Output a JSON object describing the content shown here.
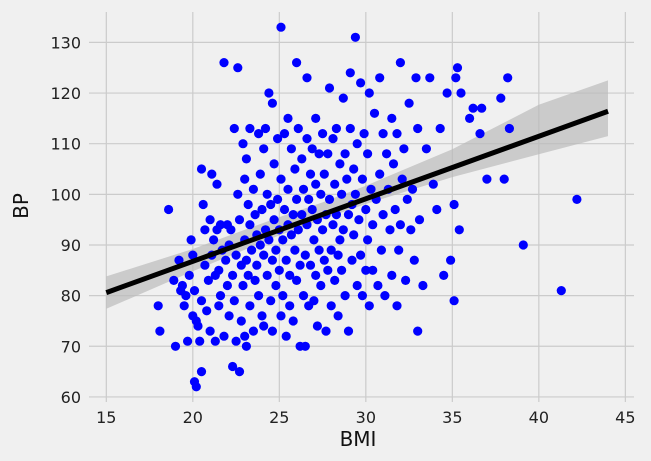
{
  "chart_data": {
    "type": "scatter",
    "title": "",
    "xlabel": "BMI",
    "ylabel": "BP",
    "xlim": [
      14,
      45.5
    ],
    "ylim": [
      59,
      136
    ],
    "xticks": [
      15,
      20,
      25,
      30,
      35,
      40,
      45
    ],
    "yticks": [
      60,
      70,
      80,
      90,
      100,
      110,
      120,
      130
    ],
    "grid": true,
    "point_color": "#0000ff",
    "regression_line": {
      "x": [
        15,
        44
      ],
      "y": [
        80.6,
        116.4
      ],
      "color": "#000000"
    },
    "confidence_band": {
      "x": [
        15,
        20,
        25,
        27.5,
        30,
        35,
        40,
        44
      ],
      "lower": [
        77.4,
        84.8,
        91.9,
        95.1,
        98.1,
        103.4,
        107.9,
        111.5
      ],
      "upper": [
        83.8,
        89.2,
        95.5,
        98.4,
        101.7,
        108.9,
        117.7,
        122.5
      ],
      "color": "#bbbbbb"
    },
    "points": [
      [
        18.0,
        78
      ],
      [
        18.1,
        73
      ],
      [
        18.6,
        97
      ],
      [
        18.9,
        83
      ],
      [
        19.0,
        70
      ],
      [
        19.2,
        87
      ],
      [
        19.3,
        81
      ],
      [
        19.4,
        82
      ],
      [
        19.5,
        78
      ],
      [
        19.6,
        80
      ],
      [
        19.7,
        71
      ],
      [
        19.8,
        84
      ],
      [
        19.9,
        91
      ],
      [
        20.0,
        88
      ],
      [
        20.0,
        76
      ],
      [
        20.1,
        81
      ],
      [
        20.1,
        63
      ],
      [
        20.2,
        62
      ],
      [
        20.2,
        75
      ],
      [
        20.3,
        74
      ],
      [
        20.4,
        71
      ],
      [
        20.5,
        105
      ],
      [
        20.5,
        79
      ],
      [
        20.5,
        65
      ],
      [
        20.6,
        98
      ],
      [
        20.7,
        93
      ],
      [
        20.7,
        86
      ],
      [
        20.8,
        77
      ],
      [
        20.9,
        83
      ],
      [
        21.0,
        95
      ],
      [
        21.0,
        73
      ],
      [
        21.1,
        104
      ],
      [
        21.1,
        88
      ],
      [
        21.2,
        91
      ],
      [
        21.3,
        84
      ],
      [
        21.3,
        71
      ],
      [
        21.4,
        102
      ],
      [
        21.4,
        93
      ],
      [
        21.5,
        85
      ],
      [
        21.5,
        78
      ],
      [
        21.6,
        94
      ],
      [
        21.6,
        80
      ],
      [
        21.7,
        89
      ],
      [
        21.8,
        126
      ],
      [
        21.8,
        72
      ],
      [
        21.9,
        87
      ],
      [
        22.0,
        94
      ],
      [
        22.0,
        82
      ],
      [
        22.1,
        90
      ],
      [
        22.1,
        76
      ],
      [
        22.2,
        93
      ],
      [
        22.3,
        84
      ],
      [
        22.3,
        66
      ],
      [
        22.4,
        113
      ],
      [
        22.4,
        79
      ],
      [
        22.5,
        88
      ],
      [
        22.5,
        71
      ],
      [
        22.6,
        125
      ],
      [
        22.6,
        100
      ],
      [
        22.7,
        95
      ],
      [
        22.7,
        65
      ],
      [
        22.8,
        86
      ],
      [
        22.8,
        75
      ],
      [
        22.9,
        110
      ],
      [
        22.9,
        82
      ],
      [
        23.0,
        103
      ],
      [
        23.0,
        91
      ],
      [
        23.0,
        72
      ],
      [
        23.1,
        107
      ],
      [
        23.1,
        87
      ],
      [
        23.1,
        70
      ],
      [
        23.2,
        98
      ],
      [
        23.2,
        84
      ],
      [
        23.3,
        113
      ],
      [
        23.3,
        94
      ],
      [
        23.3,
        78
      ],
      [
        23.4,
        89
      ],
      [
        23.5,
        101
      ],
      [
        23.5,
        73
      ],
      [
        23.6,
        96
      ],
      [
        23.6,
        83
      ],
      [
        23.7,
        92
      ],
      [
        23.7,
        86
      ],
      [
        23.8,
        112
      ],
      [
        23.8,
        80
      ],
      [
        23.9,
        104
      ],
      [
        23.9,
        90
      ],
      [
        24.0,
        97
      ],
      [
        24.0,
        76
      ],
      [
        24.1,
        109
      ],
      [
        24.1,
        88
      ],
      [
        24.1,
        74
      ],
      [
        24.2,
        113
      ],
      [
        24.2,
        93
      ],
      [
        24.3,
        100
      ],
      [
        24.3,
        84
      ],
      [
        24.4,
        120
      ],
      [
        24.4,
        91
      ],
      [
        24.5,
        98
      ],
      [
        24.5,
        79
      ],
      [
        24.6,
        118
      ],
      [
        24.6,
        87
      ],
      [
        24.6,
        73
      ],
      [
        24.7,
        106
      ],
      [
        24.7,
        95
      ],
      [
        24.8,
        82
      ],
      [
        24.8,
        89
      ],
      [
        24.9,
        111
      ],
      [
        24.9,
        99
      ],
      [
        25.0,
        93
      ],
      [
        25.0,
        85
      ],
      [
        25.1,
        133
      ],
      [
        25.1,
        103
      ],
      [
        25.1,
        76
      ],
      [
        25.2,
        91
      ],
      [
        25.2,
        80
      ],
      [
        25.3,
        112
      ],
      [
        25.3,
        97
      ],
      [
        25.4,
        87
      ],
      [
        25.4,
        72
      ],
      [
        25.5,
        115
      ],
      [
        25.5,
        101
      ],
      [
        25.5,
        94
      ],
      [
        25.6,
        84
      ],
      [
        25.6,
        78
      ],
      [
        25.7,
        109
      ],
      [
        25.7,
        92
      ],
      [
        25.8,
        96
      ],
      [
        25.8,
        75
      ],
      [
        25.9,
        105
      ],
      [
        25.9,
        89
      ],
      [
        26.0,
        126
      ],
      [
        26.0,
        99
      ],
      [
        26.0,
        83
      ],
      [
        26.1,
        113
      ],
      [
        26.1,
        93
      ],
      [
        26.2,
        86
      ],
      [
        26.2,
        70
      ],
      [
        26.3,
        107
      ],
      [
        26.3,
        96
      ],
      [
        26.4,
        101
      ],
      [
        26.4,
        80
      ],
      [
        26.5,
        70
      ],
      [
        26.5,
        88
      ],
      [
        26.6,
        123
      ],
      [
        26.6,
        111
      ],
      [
        26.6,
        94
      ],
      [
        26.7,
        99
      ],
      [
        26.7,
        78
      ],
      [
        26.8,
        104
      ],
      [
        26.8,
        86
      ],
      [
        26.9,
        109
      ],
      [
        26.9,
        97
      ],
      [
        27.0,
        91
      ],
      [
        27.0,
        79
      ],
      [
        27.1,
        115
      ],
      [
        27.1,
        102
      ],
      [
        27.1,
        84
      ],
      [
        27.2,
        95
      ],
      [
        27.2,
        74
      ],
      [
        27.3,
        108
      ],
      [
        27.3,
        89
      ],
      [
        27.4,
        100
      ],
      [
        27.4,
        82
      ],
      [
        27.5,
        112
      ],
      [
        27.5,
        93
      ],
      [
        27.6,
        104
      ],
      [
        27.6,
        87
      ],
      [
        27.7,
        96
      ],
      [
        27.7,
        73
      ],
      [
        27.8,
        108
      ],
      [
        27.8,
        85
      ],
      [
        27.9,
        121
      ],
      [
        27.9,
        99
      ],
      [
        28.0,
        89
      ],
      [
        28.0,
        78
      ],
      [
        28.1,
        111
      ],
      [
        28.1,
        94
      ],
      [
        28.2,
        102
      ],
      [
        28.2,
        83
      ],
      [
        28.3,
        113
      ],
      [
        28.3,
        96
      ],
      [
        28.4,
        88
      ],
      [
        28.4,
        76
      ],
      [
        28.5,
        106
      ],
      [
        28.5,
        91
      ],
      [
        28.6,
        100
      ],
      [
        28.6,
        85
      ],
      [
        28.7,
        119
      ],
      [
        28.7,
        93
      ],
      [
        28.8,
        108
      ],
      [
        28.8,
        80
      ],
      [
        28.9,
        103
      ],
      [
        29.0,
        96
      ],
      [
        29.0,
        73
      ],
      [
        29.1,
        124
      ],
      [
        29.1,
        113
      ],
      [
        29.2,
        98
      ],
      [
        29.2,
        87
      ],
      [
        29.3,
        105
      ],
      [
        29.3,
        92
      ],
      [
        29.4,
        131
      ],
      [
        29.4,
        100
      ],
      [
        29.5,
        82
      ],
      [
        29.5,
        110
      ],
      [
        29.6,
        95
      ],
      [
        29.7,
        122
      ],
      [
        29.7,
        88
      ],
      [
        29.8,
        103
      ],
      [
        29.8,
        80
      ],
      [
        29.9,
        112
      ],
      [
        30.0,
        97
      ],
      [
        30.0,
        85
      ],
      [
        30.1,
        108
      ],
      [
        30.1,
        91
      ],
      [
        30.2,
        120
      ],
      [
        30.2,
        78
      ],
      [
        30.3,
        101
      ],
      [
        30.4,
        94
      ],
      [
        30.4,
        85
      ],
      [
        30.5,
        116
      ],
      [
        30.6,
        99
      ],
      [
        30.7,
        82
      ],
      [
        30.8,
        123
      ],
      [
        30.8,
        104
      ],
      [
        30.9,
        89
      ],
      [
        31.0,
        112
      ],
      [
        31.0,
        96
      ],
      [
        31.1,
        80
      ],
      [
        31.2,
        108
      ],
      [
        31.3,
        101
      ],
      [
        31.4,
        93
      ],
      [
        31.5,
        115
      ],
      [
        31.5,
        84
      ],
      [
        31.6,
        106
      ],
      [
        31.7,
        97
      ],
      [
        31.8,
        112
      ],
      [
        31.8,
        78
      ],
      [
        31.9,
        89
      ],
      [
        32.0,
        126
      ],
      [
        32.0,
        94
      ],
      [
        32.1,
        103
      ],
      [
        32.2,
        109
      ],
      [
        32.3,
        83
      ],
      [
        32.4,
        99
      ],
      [
        32.5,
        118
      ],
      [
        32.6,
        93
      ],
      [
        32.7,
        101
      ],
      [
        32.8,
        87
      ],
      [
        32.9,
        123
      ],
      [
        33.0,
        113
      ],
      [
        33.0,
        73
      ],
      [
        33.1,
        95
      ],
      [
        33.3,
        82
      ],
      [
        33.5,
        109
      ],
      [
        33.7,
        123
      ],
      [
        33.9,
        102
      ],
      [
        34.1,
        97
      ],
      [
        34.3,
        113
      ],
      [
        34.5,
        84
      ],
      [
        34.7,
        120
      ],
      [
        34.9,
        87
      ],
      [
        35.1,
        98
      ],
      [
        35.1,
        79
      ],
      [
        35.2,
        123
      ],
      [
        35.3,
        125
      ],
      [
        35.4,
        93
      ],
      [
        35.5,
        120
      ],
      [
        36.0,
        115
      ],
      [
        36.2,
        117
      ],
      [
        36.6,
        112
      ],
      [
        36.7,
        117
      ],
      [
        37.0,
        103
      ],
      [
        37.8,
        119
      ],
      [
        38.0,
        103
      ],
      [
        38.2,
        123
      ],
      [
        38.3,
        113
      ],
      [
        39.1,
        90
      ],
      [
        41.3,
        81
      ],
      [
        42.2,
        99
      ]
    ]
  }
}
